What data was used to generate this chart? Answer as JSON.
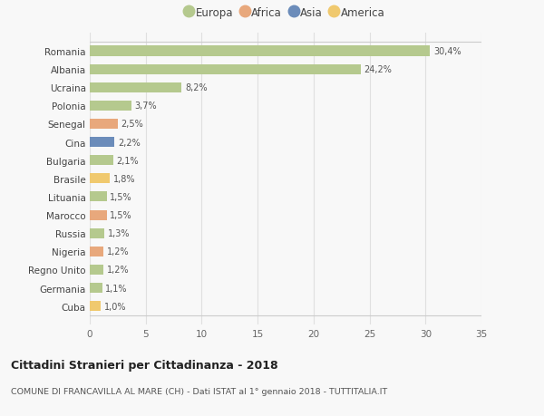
{
  "countries": [
    "Romania",
    "Albania",
    "Ucraina",
    "Polonia",
    "Senegal",
    "Cina",
    "Bulgaria",
    "Brasile",
    "Lituania",
    "Marocco",
    "Russia",
    "Nigeria",
    "Regno Unito",
    "Germania",
    "Cuba"
  ],
  "values": [
    30.4,
    24.2,
    8.2,
    3.7,
    2.5,
    2.2,
    2.1,
    1.8,
    1.5,
    1.5,
    1.3,
    1.2,
    1.2,
    1.1,
    1.0
  ],
  "labels": [
    "30,4%",
    "24,2%",
    "8,2%",
    "3,7%",
    "2,5%",
    "2,2%",
    "2,1%",
    "1,8%",
    "1,5%",
    "1,5%",
    "1,3%",
    "1,2%",
    "1,2%",
    "1,1%",
    "1,0%"
  ],
  "continents": [
    "Europa",
    "Europa",
    "Europa",
    "Europa",
    "Africa",
    "Asia",
    "Europa",
    "America",
    "Europa",
    "Africa",
    "Europa",
    "Africa",
    "Europa",
    "Europa",
    "America"
  ],
  "colors": {
    "Europa": "#b5c98e",
    "Africa": "#e8a87c",
    "Asia": "#6b8cba",
    "America": "#f0c96e"
  },
  "legend_order": [
    "Europa",
    "Africa",
    "Asia",
    "America"
  ],
  "xlim": [
    0,
    35
  ],
  "xticks": [
    0,
    5,
    10,
    15,
    20,
    25,
    30,
    35
  ],
  "title": "Cittadini Stranieri per Cittadinanza - 2018",
  "subtitle": "COMUNE DI FRANCAVILLA AL MARE (CH) - Dati ISTAT al 1° gennaio 2018 - TUTTITALIA.IT",
  "bg_color": "#f8f8f8",
  "grid_color": "#e0e0e0"
}
